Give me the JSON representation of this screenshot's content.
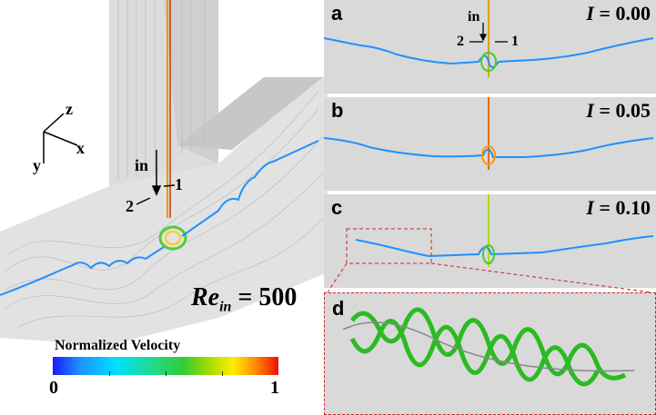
{
  "main_view": {
    "axes": {
      "z": "z",
      "x": "x",
      "y": "y"
    },
    "inlet_label": "in",
    "outlet1_label": "1",
    "outlet2_label": "2",
    "reynolds": {
      "symbol": "Re",
      "subscript": "in",
      "equals": "=",
      "value": "500"
    }
  },
  "colorbar": {
    "title": "Normalized Velocity",
    "min_label": "0",
    "max_label": "1",
    "colors": [
      "#1a1aff",
      "#00e0ff",
      "#33cc33",
      "#ffee00",
      "#ee1100"
    ]
  },
  "panels": [
    {
      "letter": "a",
      "i_symbol": "I",
      "i_value": "= 0.00",
      "inlet_label": "in",
      "outlet2_label": "2",
      "outlet1_label": "1"
    },
    {
      "letter": "b",
      "i_symbol": "I",
      "i_value": "= 0.05"
    },
    {
      "letter": "c",
      "i_symbol": "I",
      "i_value": "= 0.10"
    },
    {
      "letter": "d"
    }
  ]
}
